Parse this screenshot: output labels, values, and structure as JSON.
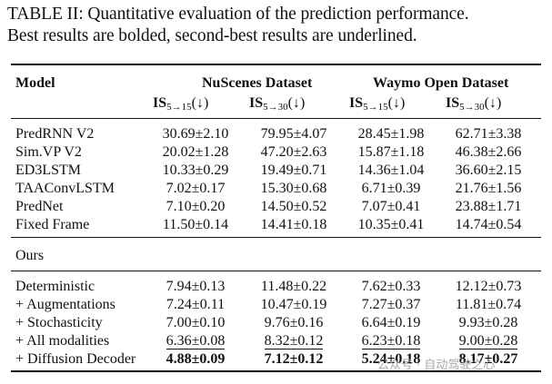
{
  "caption": {
    "line1": "TABLE II: Quantitative evaluation of the prediction performance.",
    "line2": "Best results are bolded, second-best results are underlined."
  },
  "header": {
    "model": "Model",
    "datasets": [
      "NuScenes Dataset",
      "Waymo Open Dataset"
    ],
    "metrics": [
      {
        "base": "IS",
        "sub": "5→15",
        "arrow": "(↓)"
      },
      {
        "base": "IS",
        "sub": "5→30",
        "arrow": "(↓)"
      },
      {
        "base": "IS",
        "sub": "5→15",
        "arrow": "(↓)"
      },
      {
        "base": "IS",
        "sub": "5→30",
        "arrow": "(↓)"
      }
    ]
  },
  "baselines": [
    {
      "model": "PredRNN V2",
      "cells": [
        "30.69±2.10",
        "79.95±4.07",
        "28.45±1.98",
        "62.71±3.38"
      ]
    },
    {
      "model": "Sim.VP V2",
      "cells": [
        "20.02±1.28",
        "47.20±2.63",
        "15.87±1.18",
        "46.38±2.66"
      ]
    },
    {
      "model": "ED3LSTM",
      "cells": [
        "10.33±0.29",
        "19.49±0.71",
        "14.36±1.04",
        "36.60±2.15"
      ]
    },
    {
      "model": "TAAConvLSTM",
      "cells": [
        "7.02±0.17",
        "15.30±0.68",
        "6.71±0.39",
        "21.76±1.56"
      ]
    },
    {
      "model": "PredNet",
      "cells": [
        "7.10±0.20",
        "14.50±0.52",
        "7.07±0.41",
        "23.88±1.71"
      ]
    },
    {
      "model": "Fixed Frame",
      "cells": [
        "11.50±0.14",
        "14.41±0.18",
        "10.35±0.41",
        "14.74±0.54"
      ]
    }
  ],
  "ours_label": "Ours",
  "ours": [
    {
      "model": "Deterministic",
      "cells": [
        "7.94±0.13",
        "11.48±0.22",
        "7.62±0.33",
        "12.12±0.73"
      ]
    },
    {
      "model": "+ Augmentations",
      "cells": [
        "7.24±0.11",
        "10.47±0.19",
        "7.27±0.37",
        "11.81±0.74"
      ]
    },
    {
      "model": "+ Stochasticity",
      "cells": [
        "7.00±0.10",
        "9.76±0.16",
        "6.64±0.19",
        "9.93±0.28"
      ]
    },
    {
      "model": "+ All modalities",
      "cells": [
        "6.36±0.08",
        "8.32±0.12",
        "6.23±0.18",
        "9.00±0.28"
      ]
    },
    {
      "model": "+ Diffusion Decoder",
      "cells": [
        "4.88±0.09",
        "7.12±0.12",
        "5.24±0.18",
        "8.17±0.27"
      ]
    }
  ],
  "watermark": "公众号 · 自动驾驶之心"
}
